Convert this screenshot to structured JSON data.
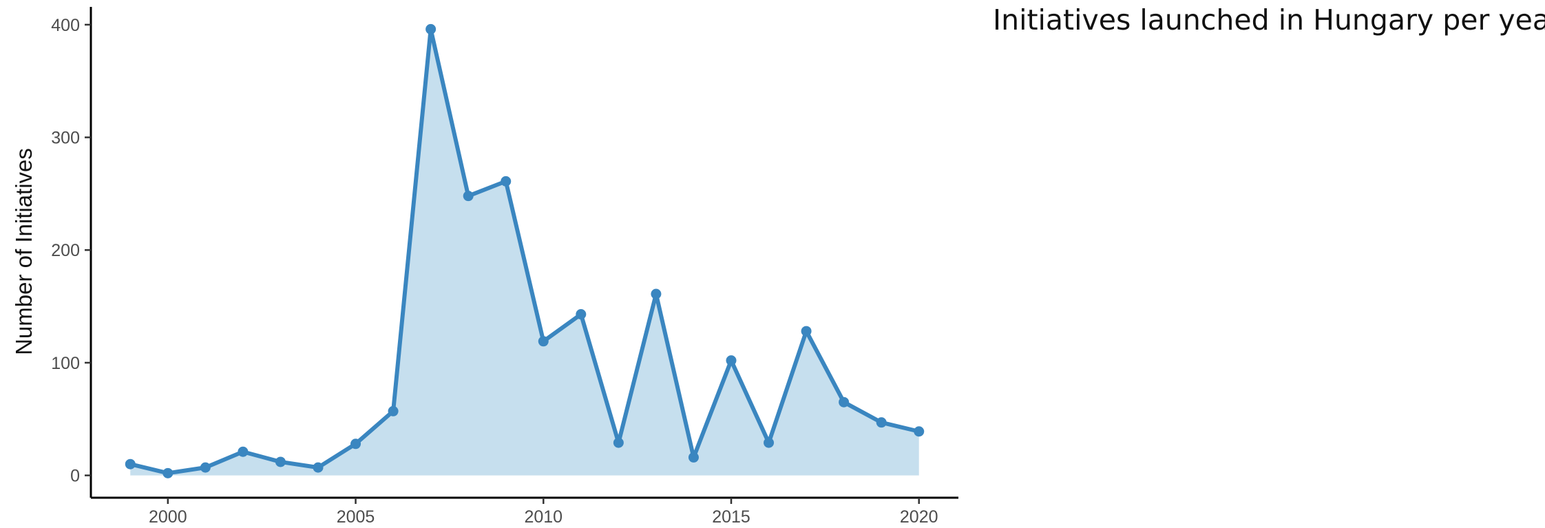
{
  "side_title": "Initiatives launched in Hungary per year",
  "chart_data": {
    "type": "area",
    "title": "Initiatives launched in Hungary per year",
    "xlabel": "",
    "ylabel": "Number of Initiatives",
    "x": [
      1999,
      2000,
      2001,
      2002,
      2003,
      2004,
      2005,
      2006,
      2007,
      2008,
      2009,
      2010,
      2011,
      2012,
      2013,
      2014,
      2015,
      2016,
      2017,
      2018,
      2019,
      2020
    ],
    "series": [
      {
        "values": [
          10,
          2,
          7,
          21,
          12,
          7,
          28,
          57,
          396,
          248,
          261,
          119,
          143,
          29,
          161,
          16,
          102,
          29,
          128,
          65,
          47,
          39
        ]
      }
    ],
    "xlim": [
      1997.95,
      2021.05
    ],
    "ylim": [
      -19.8,
      415.8
    ],
    "x_ticks": [
      "2000",
      "2005",
      "2010",
      "2015",
      "2020"
    ],
    "y_ticks": [
      "0",
      "100",
      "200",
      "300",
      "400"
    ],
    "grid": false,
    "line_color": "#3a86c0",
    "fill_color": "#c6dfee"
  }
}
